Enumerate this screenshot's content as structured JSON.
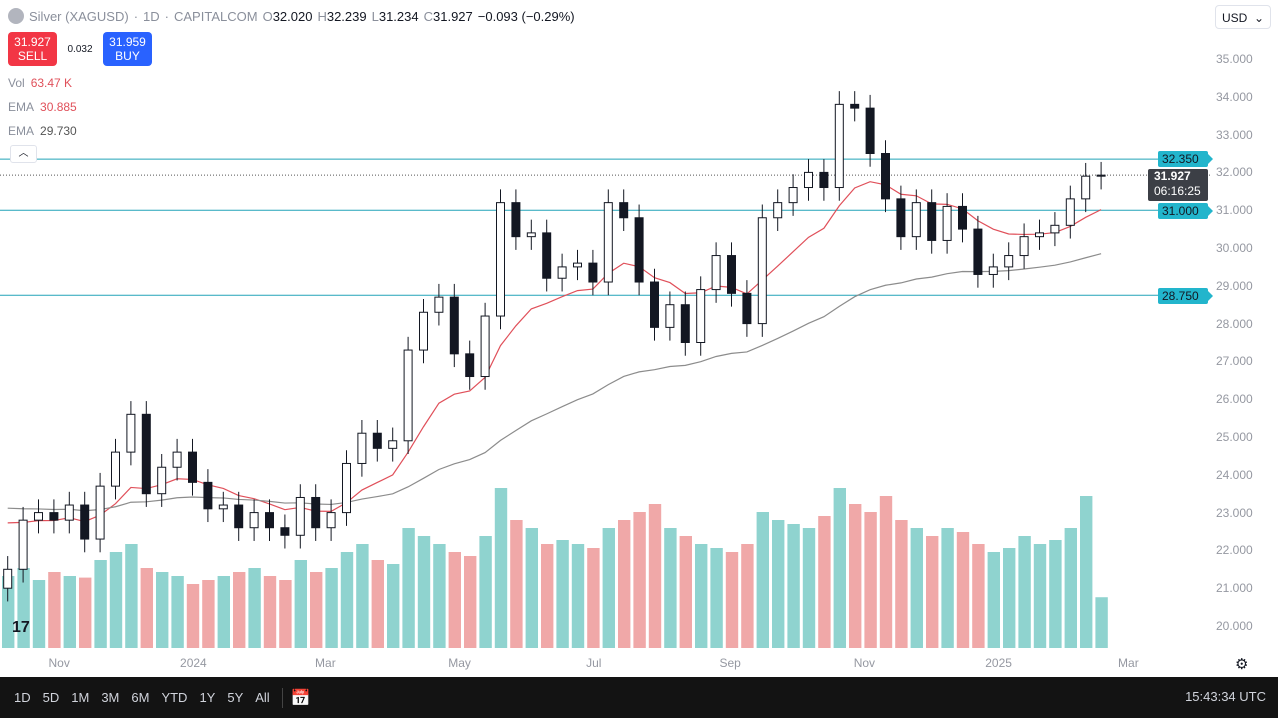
{
  "header": {
    "title": "Silver (XAGUSD)",
    "interval": "1D",
    "exchange": "CAPITALCOM",
    "sep": "·",
    "o_label": "O",
    "open": "32.020",
    "h_label": "H",
    "high": "32.239",
    "l_label": "L",
    "low": "31.234",
    "c_label": "C",
    "close": "31.927",
    "change": "−0.093 (−0.29%)"
  },
  "trade": {
    "sell_price": "31.927",
    "sell_label": "SELL",
    "spread": "0.032",
    "buy_price": "31.959",
    "buy_label": "BUY"
  },
  "indicators": [
    {
      "name": "Vol",
      "value": "63.47 K"
    },
    {
      "name": "EMA",
      "value": "30.885"
    },
    {
      "name": "EMA",
      "value": "29.730"
    }
  ],
  "currency": "USD",
  "current_price": {
    "price": "31.927",
    "countdown": "06:16:25"
  },
  "toolbar": {
    "ranges": [
      "1D",
      "5D",
      "1M",
      "3M",
      "6M",
      "YTD",
      "1Y",
      "5Y",
      "All"
    ],
    "clock": "15:43:34 UTC"
  },
  "colors": {
    "up": "#131722",
    "down": "#131722",
    "ema_fast": "#e0505a",
    "ema_slow": "#8c8c8c",
    "hline": "#22a3b8",
    "vol_up": "#8fd3cf",
    "vol_down": "#f0a8a8"
  },
  "chart_data": {
    "type": "candlestick",
    "interval_shown": "1D (approximated weekly below)",
    "y_ticks": [
      "35.000",
      "34.000",
      "33.000",
      "32.000",
      "31.000",
      "30.000",
      "29.000",
      "28.000",
      "27.000",
      "26.000",
      "25.000",
      "24.000",
      "23.000",
      "22.000",
      "21.000",
      "20.000"
    ],
    "ylim": [
      19.6,
      35.6
    ],
    "x_ticks": [
      {
        "label": "Nov",
        "date": "2023-11-01"
      },
      {
        "label": "2024",
        "date": "2024-01-01"
      },
      {
        "label": "Mar",
        "date": "2024-03-01"
      },
      {
        "label": "May",
        "date": "2024-05-01"
      },
      {
        "label": "Jul",
        "date": "2024-07-01"
      },
      {
        "label": "Sep",
        "date": "2024-09-01"
      },
      {
        "label": "Nov",
        "date": "2024-11-01"
      },
      {
        "label": "2025",
        "date": "2025-01-01"
      },
      {
        "label": "Mar",
        "date": "2025-03-01"
      }
    ],
    "horizontal_levels": [
      "32.350",
      "31.000",
      "28.750"
    ],
    "week_start": "2023-10-06",
    "closes": [
      21.5,
      22.8,
      23.0,
      22.8,
      23.2,
      22.3,
      23.7,
      24.6,
      25.6,
      23.5,
      24.2,
      24.6,
      23.8,
      23.1,
      23.2,
      22.6,
      23.0,
      22.6,
      22.4,
      23.4,
      22.6,
      23.0,
      24.3,
      25.1,
      24.7,
      24.9,
      27.3,
      28.3,
      28.7,
      27.2,
      26.6,
      28.2,
      31.2,
      30.3,
      30.4,
      29.2,
      29.5,
      29.6,
      29.1,
      31.2,
      30.8,
      29.1,
      27.9,
      28.5,
      27.5,
      28.9,
      29.8,
      28.8,
      28.0,
      30.8,
      31.2,
      31.6,
      32.0,
      31.6,
      33.8,
      33.7,
      32.5,
      31.3,
      30.3,
      31.2,
      30.2,
      31.1,
      30.5,
      29.3,
      29.5,
      29.8,
      30.3,
      30.4,
      30.6,
      31.3,
      31.9,
      31.927
    ],
    "volume_k": [
      90,
      100,
      85,
      95,
      90,
      88,
      110,
      120,
      130,
      100,
      95,
      90,
      80,
      85,
      90,
      95,
      100,
      90,
      85,
      110,
      95,
      100,
      120,
      130,
      110,
      105,
      150,
      140,
      130,
      120,
      115,
      140,
      200,
      160,
      150,
      130,
      135,
      130,
      125,
      150,
      160,
      170,
      180,
      150,
      140,
      130,
      125,
      120,
      130,
      170,
      160,
      155,
      150,
      165,
      200,
      180,
      170,
      190,
      160,
      150,
      140,
      150,
      145,
      130,
      120,
      125,
      140,
      130,
      135,
      150,
      190,
      63.47
    ]
  }
}
